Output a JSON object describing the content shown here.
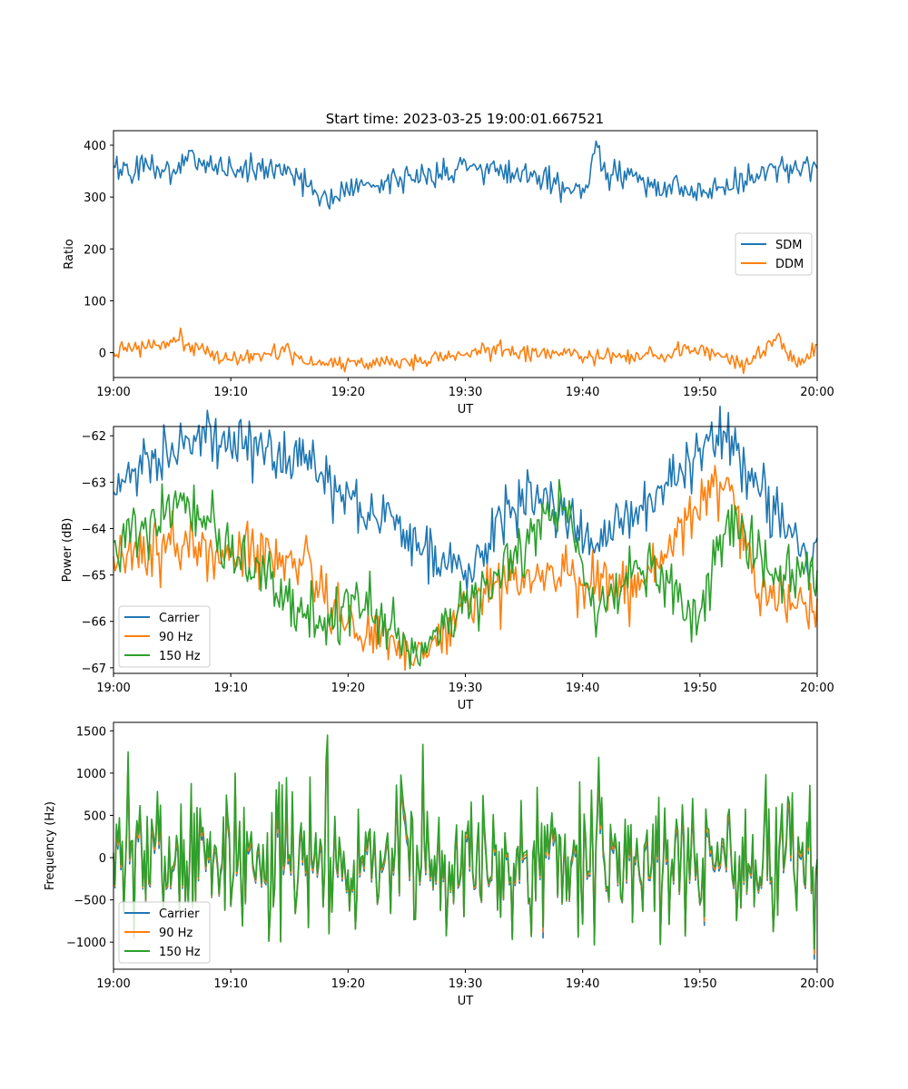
{
  "figure": {
    "title": "Start time: 2023-03-25 19:00:01.667521"
  },
  "chart_data": [
    {
      "type": "line",
      "xlabel": "UT",
      "ylabel": "Ratio",
      "xlim": [
        "19:00",
        "20:00"
      ],
      "ylim": [
        -48,
        428
      ],
      "xticks": [
        "19:00",
        "19:10",
        "19:20",
        "19:30",
        "19:40",
        "19:50",
        "20:00"
      ],
      "yticks": [
        "0",
        "100",
        "200",
        "300",
        "400"
      ],
      "grid": false,
      "legend": "center-right",
      "series": [
        {
          "name": "SDM",
          "color": "#1f77b4",
          "x_minutes": [
            0,
            5.4,
            6.2,
            10.2,
            15,
            17.4,
            30.5,
            40.4,
            41.2,
            41.6,
            50.6,
            56.8,
            60
          ],
          "values": [
            360,
            350,
            378,
            352,
            355,
            302,
            360,
            318,
            408,
            350,
            308,
            362,
            355
          ]
        },
        {
          "name": "DDM",
          "color": "#ff7f0e",
          "x_minutes": [
            0,
            5.4,
            10,
            15,
            17.2,
            26,
            30.6,
            45,
            50,
            53.8,
            56.6,
            58.2,
            60
          ],
          "values": [
            0,
            24,
            -15,
            5,
            -22,
            -18,
            4,
            -12,
            8,
            -22,
            32,
            -20,
            15
          ]
        }
      ]
    },
    {
      "type": "line",
      "xlabel": "UT",
      "ylabel": "Power (dB)",
      "xlim": [
        "19:00",
        "20:00"
      ],
      "ylim": [
        -67.12,
        -61.8
      ],
      "xticks": [
        "19:00",
        "19:10",
        "19:20",
        "19:30",
        "19:40",
        "19:50",
        "20:00"
      ],
      "yticks": [
        "−67",
        "−66",
        "−65",
        "−64",
        "−63",
        "−62"
      ],
      "grid": false,
      "legend": "lower-left",
      "series": [
        {
          "name": "Carrier",
          "color": "#1f77b4",
          "x_minutes": [
            0,
            6.2,
            16.4,
            19,
            26,
            30,
            35.5,
            40.8,
            45,
            52,
            55,
            59.5,
            60
          ],
          "values": [
            -63.2,
            -62.0,
            -62.4,
            -63.2,
            -64.3,
            -64.9,
            -63.0,
            -64.4,
            -63.5,
            -61.9,
            -63.2,
            -64.8,
            -64.2
          ]
        },
        {
          "name": "90 Hz",
          "color": "#ff7f0e",
          "x_minutes": [
            0,
            5.2,
            16,
            19.3,
            26.4,
            30,
            35.4,
            40,
            45,
            52.3,
            55,
            59.6,
            60
          ],
          "values": [
            -64.6,
            -64.3,
            -64.8,
            -66.0,
            -66.8,
            -65.6,
            -64.9,
            -65.2,
            -65.1,
            -62.9,
            -65.4,
            -65.8,
            -65.5
          ]
        },
        {
          "name": "150 Hz",
          "color": "#2ca02c",
          "x_minutes": [
            0,
            5.8,
            17.8,
            20,
            26.4,
            30,
            38.8,
            41,
            46,
            49.8,
            52.4,
            56,
            60
          ],
          "values": [
            -64.3,
            -63.4,
            -66.2,
            -65.4,
            -66.7,
            -65.6,
            -63.4,
            -65.8,
            -64.7,
            -66.0,
            -63.6,
            -65.0,
            -64.9
          ]
        }
      ]
    },
    {
      "type": "line",
      "xlabel": "UT",
      "ylabel": "Frequency (Hz)",
      "xlim": [
        "19:00",
        "20:00"
      ],
      "ylim": [
        -1320,
        1600
      ],
      "xticks": [
        "19:00",
        "19:10",
        "19:20",
        "19:30",
        "19:40",
        "19:50",
        "20:00"
      ],
      "yticks": [
        "−1000",
        "−500",
        "0",
        "500",
        "1000",
        "1500"
      ],
      "grid": false,
      "legend": "lower-left",
      "series": [
        {
          "name": "Carrier",
          "color": "#1f77b4",
          "x_minutes": [
            0,
            1.3,
            6.2,
            10.4,
            14.5,
            18.2,
            26.4,
            29.6,
            36.6,
            50.4,
            59.8,
            60
          ],
          "values": [
            0,
            1150,
            -100,
            900,
            -200,
            1350,
            1250,
            -200,
            -950,
            -800,
            -1200,
            -100
          ]
        },
        {
          "name": "90 Hz",
          "color": "#ff7f0e",
          "x_minutes": [
            0,
            1.3,
            6.2,
            10.4,
            14.5,
            18.2,
            26.4,
            29.6,
            36.6,
            50.4,
            59.8,
            60
          ],
          "values": [
            30,
            1200,
            -70,
            960,
            -150,
            1400,
            1300,
            -150,
            -880,
            -750,
            -1140,
            -60
          ]
        },
        {
          "name": "150 Hz",
          "color": "#2ca02c",
          "x_minutes": [
            0,
            1.3,
            6.2,
            10.4,
            14.5,
            18.2,
            26.4,
            29.6,
            36.6,
            50.4,
            59.8,
            60
          ],
          "values": [
            60,
            1250,
            -40,
            1000,
            -100,
            1450,
            1340,
            -100,
            -820,
            -700,
            -1080,
            -20
          ]
        }
      ]
    }
  ]
}
